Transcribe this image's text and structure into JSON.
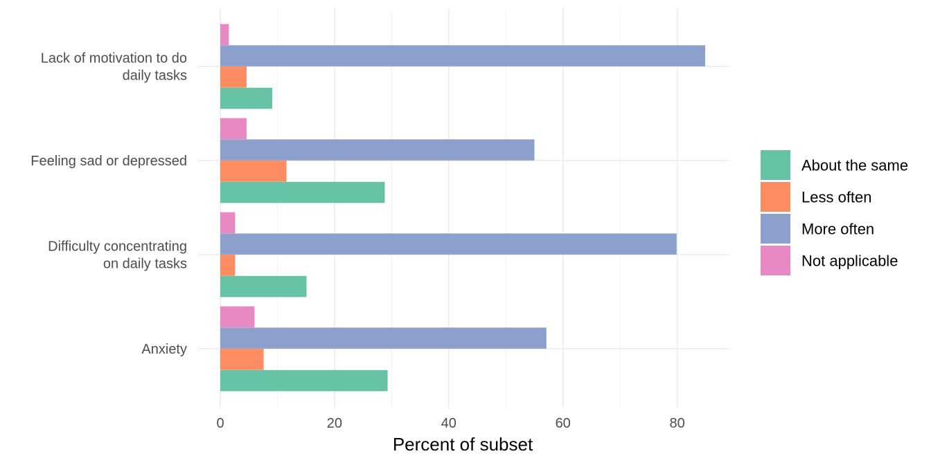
{
  "chart_data": {
    "type": "bar",
    "orientation": "horizontal",
    "categories": [
      "Lack of motivation to do daily tasks",
      "Feeling sad or depressed",
      "Difficulty concentrating on daily tasks",
      "Anxiety"
    ],
    "category_label_lines": [
      [
        "Lack of motivation to do",
        "daily tasks"
      ],
      [
        "Feeling sad or depressed"
      ],
      [
        "Difficulty concentrating",
        "on daily tasks"
      ],
      [
        "Anxiety"
      ]
    ],
    "series": [
      {
        "name": "About the same",
        "color": "#66c2a5",
        "values": [
          9.1,
          28.8,
          15.1,
          29.3
        ]
      },
      {
        "name": "Less often",
        "color": "#fc8d62",
        "values": [
          4.6,
          11.6,
          2.6,
          7.6
        ]
      },
      {
        "name": "More often",
        "color": "#8da0cb",
        "values": [
          84.9,
          55.0,
          79.9,
          57.1
        ]
      },
      {
        "name": "Not applicable",
        "color": "#e78ac3",
        "values": [
          1.5,
          4.6,
          2.6,
          6.0
        ]
      }
    ],
    "xlabel": "Percent of subset",
    "ylabel": "",
    "xlim": [
      0,
      89
    ],
    "xticks": [
      0,
      20,
      40,
      60,
      80
    ],
    "grid": true,
    "legend_position": "right"
  }
}
